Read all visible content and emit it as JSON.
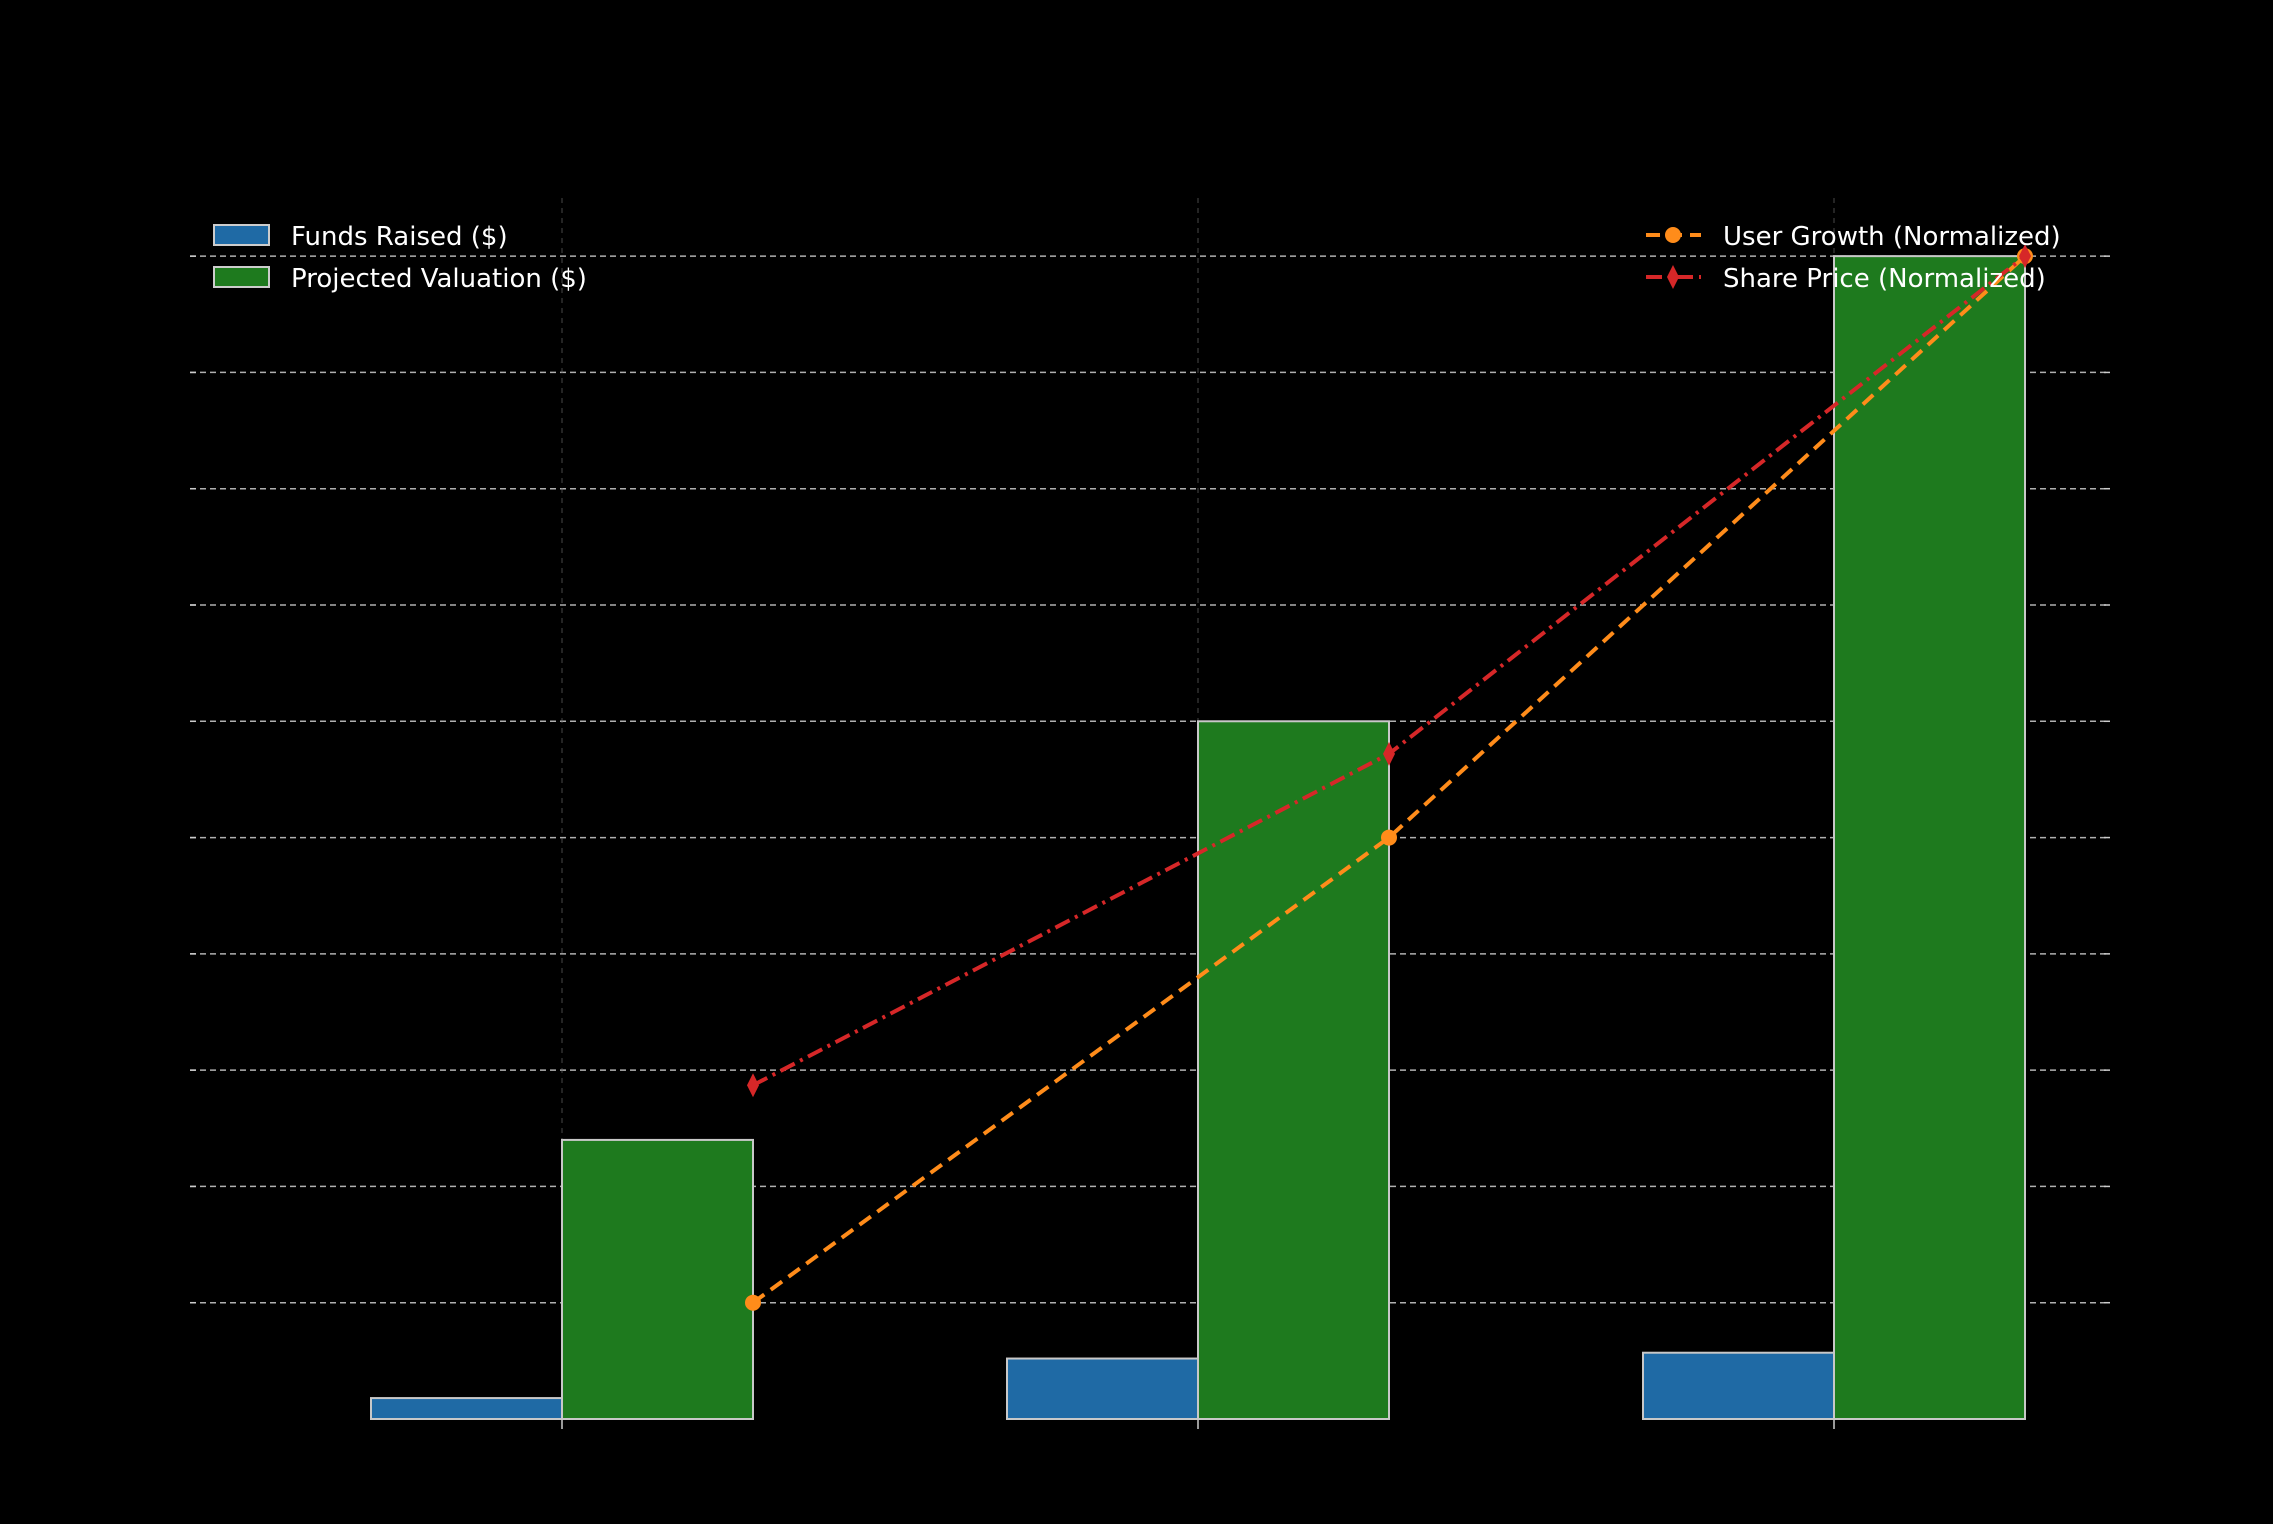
{
  "chart_data": {
    "type": "bar",
    "categories": [
      "",
      "",
      ""
    ],
    "series": [
      {
        "name": "Funds Raised ($)",
        "kind": "bar",
        "axis": "left",
        "color": "#1f6aa5",
        "values": [
          0.18,
          0.52,
          0.57
        ]
      },
      {
        "name": "Projected Valuation ($)",
        "kind": "bar",
        "axis": "left",
        "color": "#1e7a1e",
        "values": [
          2.4,
          6.0,
          10.0
        ]
      }
    ],
    "line_series": [
      {
        "name": "User Growth (Normalized)",
        "kind": "line",
        "axis": "right",
        "color": "#ff8c1a",
        "style": "dashed",
        "marker": "circle",
        "values": [
          0.1,
          0.5,
          1.0
        ]
      },
      {
        "name": "Share Price (Normalized)",
        "kind": "line",
        "axis": "right",
        "color": "#d62728",
        "style": "dashdot",
        "marker": "thin-diamond",
        "values": [
          0.287,
          0.572,
          1.0
        ]
      }
    ],
    "ylim_left": [
      0,
      10.5
    ],
    "ylim_right": [
      0,
      1.05
    ],
    "grid": true,
    "legend_left": "top-left",
    "legend_right": "top-right",
    "background": "#000000",
    "title": "",
    "xlabel": "",
    "ylabel": ""
  }
}
